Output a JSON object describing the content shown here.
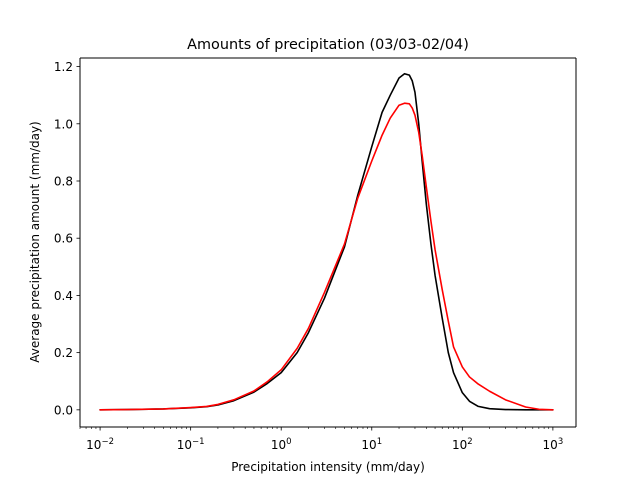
{
  "chart_data": {
    "type": "line",
    "title": "Amounts of precipitation (03/03-02/04)",
    "xlabel": "Precipitation intensity (mm/day)",
    "ylabel": "Average precipitation amount (mm/day)",
    "xscale": "log",
    "xlim": [
      0.006,
      1800
    ],
    "ylim": [
      -0.06,
      1.23
    ],
    "xticks": [
      {
        "value": 0.01,
        "base": "10",
        "exp": "−2"
      },
      {
        "value": 0.1,
        "base": "10",
        "exp": "−1"
      },
      {
        "value": 1,
        "base": "10",
        "exp": "0"
      },
      {
        "value": 10,
        "base": "10",
        "exp": "1"
      },
      {
        "value": 100,
        "base": "10",
        "exp": "2"
      },
      {
        "value": 1000,
        "base": "10",
        "exp": "3"
      }
    ],
    "yticks": [
      {
        "value": 0.0,
        "label": "0.0"
      },
      {
        "value": 0.2,
        "label": "0.2"
      },
      {
        "value": 0.4,
        "label": "0.4"
      },
      {
        "value": 0.6,
        "label": "0.6"
      },
      {
        "value": 0.8,
        "label": "0.8"
      },
      {
        "value": 1.0,
        "label": "1.0"
      },
      {
        "value": 1.2,
        "label": "1.2"
      }
    ],
    "grid": false,
    "series": [
      {
        "color": "#000000",
        "x": [
          0.01,
          0.02,
          0.05,
          0.1,
          0.15,
          0.2,
          0.3,
          0.5,
          0.7,
          1,
          1.5,
          2,
          3,
          5,
          7,
          10,
          13,
          16,
          20,
          23,
          26,
          28,
          30,
          33,
          36,
          40,
          45,
          50,
          60,
          70,
          80,
          100,
          120,
          150,
          200,
          300,
          500,
          700,
          1000
        ],
        "y": [
          0.0,
          0.001,
          0.003,
          0.007,
          0.011,
          0.017,
          0.032,
          0.062,
          0.092,
          0.13,
          0.2,
          0.27,
          0.39,
          0.57,
          0.75,
          0.92,
          1.04,
          1.1,
          1.16,
          1.175,
          1.17,
          1.15,
          1.11,
          1.0,
          0.87,
          0.72,
          0.58,
          0.47,
          0.32,
          0.2,
          0.13,
          0.06,
          0.03,
          0.012,
          0.004,
          0.001,
          0.0,
          0.0,
          0.0
        ]
      },
      {
        "color": "#ff0000",
        "x": [
          0.01,
          0.02,
          0.05,
          0.1,
          0.15,
          0.2,
          0.3,
          0.5,
          0.7,
          1,
          1.5,
          2,
          3,
          5,
          7,
          10,
          13,
          16,
          20,
          23,
          26,
          28,
          30,
          33,
          36,
          40,
          45,
          50,
          60,
          70,
          80,
          100,
          120,
          150,
          200,
          300,
          500,
          700,
          1000
        ],
        "y": [
          0.0,
          0.001,
          0.003,
          0.008,
          0.012,
          0.019,
          0.035,
          0.066,
          0.098,
          0.14,
          0.215,
          0.285,
          0.41,
          0.58,
          0.74,
          0.87,
          0.96,
          1.02,
          1.065,
          1.072,
          1.07,
          1.055,
          1.03,
          0.97,
          0.89,
          0.78,
          0.66,
          0.56,
          0.42,
          0.31,
          0.22,
          0.15,
          0.115,
          0.09,
          0.065,
          0.035,
          0.01,
          0.002,
          0.0
        ]
      }
    ]
  }
}
